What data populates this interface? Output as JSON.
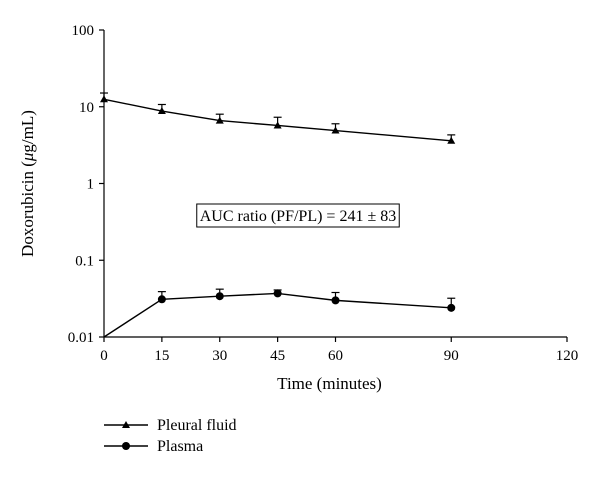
{
  "chart_data": {
    "type": "line",
    "xlabel": "Time (minutes)",
    "ylabel_prefix": "Doxorubicin (",
    "ylabel_unit_mu": "μ",
    "ylabel_unit_rest": "g/mL)",
    "x_ticks": [
      "0",
      "15",
      "30",
      "45",
      "60",
      "90",
      "120"
    ],
    "x_tick_values": [
      0,
      15,
      30,
      45,
      60,
      90,
      120
    ],
    "xlim": [
      0,
      120
    ],
    "y_scale": "log",
    "ylim": [
      0.01,
      100
    ],
    "y_ticks": [
      "0.01",
      "0.1",
      "1",
      "10",
      "100"
    ],
    "y_tick_values": [
      0.01,
      0.1,
      1,
      10,
      100
    ],
    "grid": false,
    "legend_position": "bottom-left",
    "annotation": "AUC ratio (PF/PL) = 241 ± 83",
    "series": [
      {
        "name": "Pleural fluid",
        "marker": "triangle",
        "x": [
          0,
          15,
          30,
          45,
          60,
          90
        ],
        "y": [
          12.5,
          8.8,
          6.6,
          5.7,
          4.9,
          3.6
        ],
        "error": [
          2.6,
          1.9,
          1.4,
          1.6,
          1.1,
          0.7
        ]
      },
      {
        "name": "Plasma",
        "marker": "circle",
        "x": [
          0,
          15,
          30,
          45,
          60,
          90
        ],
        "y": [
          0.01,
          0.031,
          0.034,
          0.037,
          0.03,
          0.024
        ],
        "error": [
          0,
          0.008,
          0.008,
          0.004,
          0.008,
          0.008
        ]
      }
    ]
  }
}
